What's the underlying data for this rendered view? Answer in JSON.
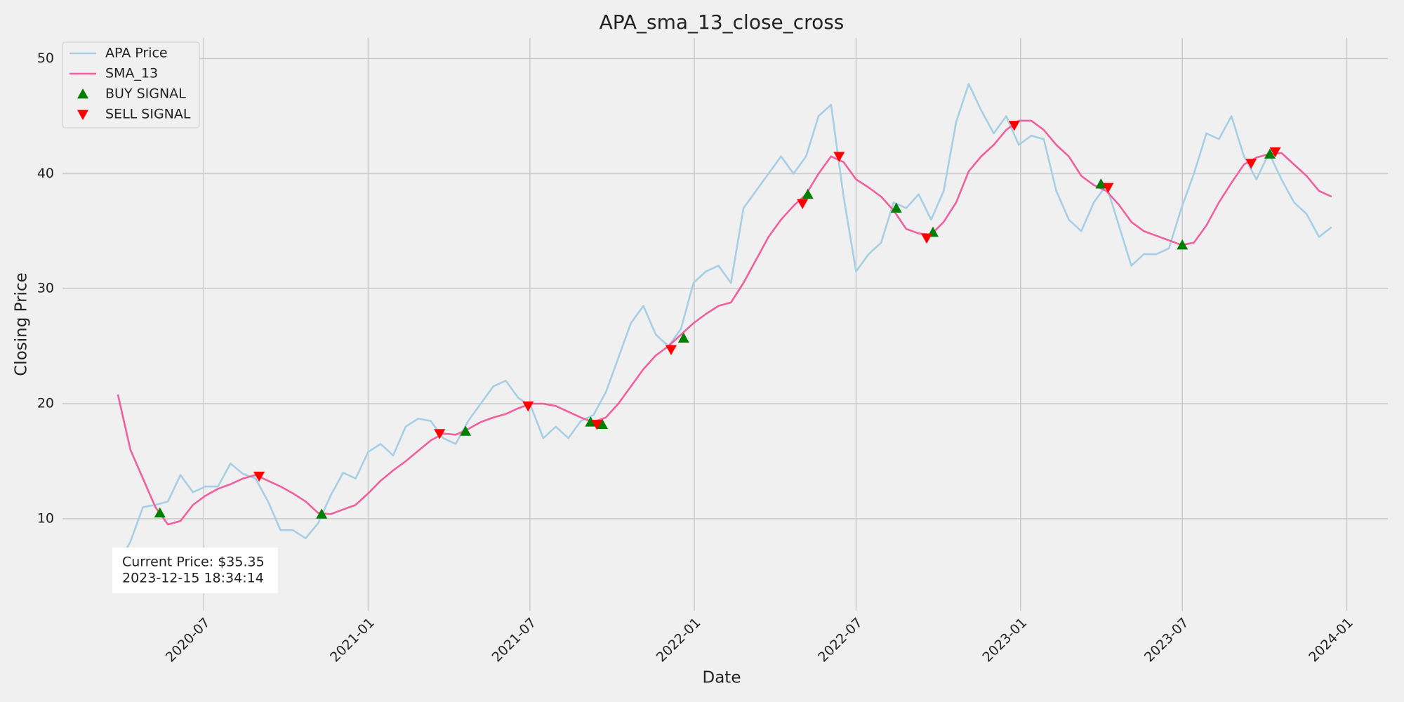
{
  "chart_data": {
    "type": "line",
    "title": "APA_sma_13_close_cross",
    "x_label": "Date",
    "y_label": "Closing Price",
    "x": [
      "2020-03-27",
      "2020-04-10",
      "2020-04-24",
      "2020-05-08",
      "2020-05-22",
      "2020-06-05",
      "2020-06-19",
      "2020-07-03",
      "2020-07-17",
      "2020-07-31",
      "2020-08-14",
      "2020-08-28",
      "2020-09-11",
      "2020-09-25",
      "2020-10-09",
      "2020-10-23",
      "2020-11-06",
      "2020-11-20",
      "2020-12-04",
      "2020-12-18",
      "2021-01-01",
      "2021-01-15",
      "2021-01-29",
      "2021-02-12",
      "2021-02-26",
      "2021-03-12",
      "2021-03-26",
      "2021-04-09",
      "2021-04-23",
      "2021-05-07",
      "2021-05-21",
      "2021-06-04",
      "2021-06-18",
      "2021-07-02",
      "2021-07-16",
      "2021-07-30",
      "2021-08-13",
      "2021-08-27",
      "2021-09-10",
      "2021-09-24",
      "2021-10-08",
      "2021-10-22",
      "2021-11-05",
      "2021-11-19",
      "2021-12-03",
      "2021-12-17",
      "2021-12-31",
      "2022-01-14",
      "2022-01-28",
      "2022-02-11",
      "2022-02-25",
      "2022-03-11",
      "2022-03-25",
      "2022-04-08",
      "2022-04-22",
      "2022-05-06",
      "2022-05-20",
      "2022-06-03",
      "2022-06-17",
      "2022-07-01",
      "2022-07-15",
      "2022-07-29",
      "2022-08-12",
      "2022-08-26",
      "2022-09-09",
      "2022-09-23",
      "2022-10-07",
      "2022-10-21",
      "2022-11-04",
      "2022-11-18",
      "2022-12-02",
      "2022-12-16",
      "2022-12-30",
      "2023-01-13",
      "2023-01-27",
      "2023-02-10",
      "2023-02-24",
      "2023-03-10",
      "2023-03-24",
      "2023-04-07",
      "2023-04-21",
      "2023-05-05",
      "2023-05-19",
      "2023-06-02",
      "2023-06-16",
      "2023-06-30",
      "2023-07-14",
      "2023-07-28",
      "2023-08-11",
      "2023-08-25",
      "2023-09-08",
      "2023-09-22",
      "2023-10-06",
      "2023-10-20",
      "2023-11-03",
      "2023-11-17",
      "2023-12-01",
      "2023-12-15"
    ],
    "series": [
      {
        "name": "APA Price",
        "color": "#a6cfe5",
        "values": [
          6.0,
          8.0,
          11.0,
          11.2,
          11.5,
          13.8,
          12.3,
          12.8,
          12.8,
          14.8,
          13.9,
          13.5,
          11.5,
          9.0,
          9.0,
          8.3,
          9.6,
          12.0,
          14.0,
          13.5,
          15.8,
          16.5,
          15.5,
          18.0,
          18.7,
          18.5,
          17.0,
          16.5,
          18.5,
          20.0,
          21.5,
          22.0,
          20.5,
          19.8,
          17.0,
          18.0,
          17.0,
          18.5,
          19.0,
          21.0,
          24.0,
          27.0,
          28.5,
          26.0,
          25.0,
          26.5,
          30.5,
          31.5,
          32.0,
          30.5,
          37.0,
          38.5,
          40.0,
          41.5,
          40.0,
          41.5,
          45.0,
          46.0,
          38.0,
          31.5,
          33.0,
          34.0,
          37.5,
          37.0,
          38.2,
          36.0,
          38.5,
          44.5,
          47.8,
          45.5,
          43.5,
          45.0,
          42.5,
          43.3,
          43.0,
          38.5,
          36.0,
          35.0,
          37.5,
          39.0,
          35.5,
          32.0,
          33.0,
          33.0,
          33.5,
          37.0,
          40.0,
          43.5,
          43.0,
          45.0,
          41.5,
          39.5,
          41.8,
          39.5,
          37.5,
          36.5,
          34.5,
          35.35
        ]
      },
      {
        "name": "SMA_13",
        "color": "#f0609e",
        "values": [
          20.8,
          16.0,
          13.5,
          11.0,
          9.5,
          9.8,
          11.2,
          12.0,
          12.6,
          13.0,
          13.5,
          13.8,
          13.3,
          12.8,
          12.2,
          11.5,
          10.5,
          10.4,
          10.8,
          11.2,
          12.2,
          13.3,
          14.2,
          15.0,
          15.9,
          16.8,
          17.4,
          17.3,
          17.8,
          18.4,
          18.8,
          19.1,
          19.6,
          20.0,
          20.0,
          19.8,
          19.3,
          18.8,
          18.4,
          18.8,
          20.0,
          21.5,
          23.0,
          24.2,
          25.0,
          26.0,
          27.0,
          27.8,
          28.5,
          28.8,
          30.5,
          32.5,
          34.5,
          36.0,
          37.2,
          38.2,
          40.0,
          41.5,
          41.0,
          39.5,
          38.8,
          38.0,
          36.8,
          35.2,
          34.8,
          34.7,
          35.8,
          37.5,
          40.2,
          41.5,
          42.5,
          43.8,
          44.6,
          44.6,
          43.8,
          42.5,
          41.5,
          39.8,
          39.0,
          38.5,
          37.3,
          35.8,
          35.0,
          34.6,
          34.2,
          33.8,
          34.0,
          35.5,
          37.5,
          39.2,
          40.8,
          41.4,
          41.7,
          41.8,
          40.8,
          39.8,
          38.5,
          38.0
        ]
      },
      {
        "name": "BUY SIGNAL",
        "type": "scatter",
        "marker": "^",
        "color": "#008000",
        "x": [
          "2020-05-13",
          "2020-11-10",
          "2021-04-20",
          "2021-09-07",
          "2021-09-20",
          "2021-12-20",
          "2022-05-08",
          "2022-08-15",
          "2022-09-25",
          "2023-04-01",
          "2023-07-01",
          "2023-10-07"
        ],
        "values": [
          10.5,
          10.4,
          17.6,
          18.4,
          18.2,
          25.7,
          38.2,
          37.0,
          34.9,
          39.1,
          33.8,
          41.7
        ]
      },
      {
        "name": "SELL SIGNAL",
        "type": "scatter",
        "marker": "v",
        "color": "#ff0000",
        "x": [
          "2020-09-01",
          "2021-03-22",
          "2021-06-29",
          "2021-09-14",
          "2021-12-06",
          "2022-05-02",
          "2022-06-12",
          "2022-09-18",
          "2022-12-25",
          "2023-04-09",
          "2023-09-16",
          "2023-10-13"
        ],
        "values": [
          13.7,
          17.4,
          19.8,
          18.2,
          24.7,
          37.4,
          41.5,
          34.4,
          44.2,
          38.8,
          40.9,
          41.9
        ]
      }
    ],
    "annotations": [
      "Current Price: $35.35",
      "2023-12-15 18:34:14"
    ],
    "xlim": [
      "2020-01-25",
      "2024-02-16"
    ],
    "xticks": [
      "2020-07",
      "2021-01",
      "2021-07",
      "2022-01",
      "2022-07",
      "2023-01",
      "2023-07",
      "2024-01"
    ],
    "ylim": [
      2,
      51.8
    ],
    "yticks": [
      10,
      20,
      30,
      40,
      50
    ],
    "grid": true,
    "legend": "upper left"
  }
}
